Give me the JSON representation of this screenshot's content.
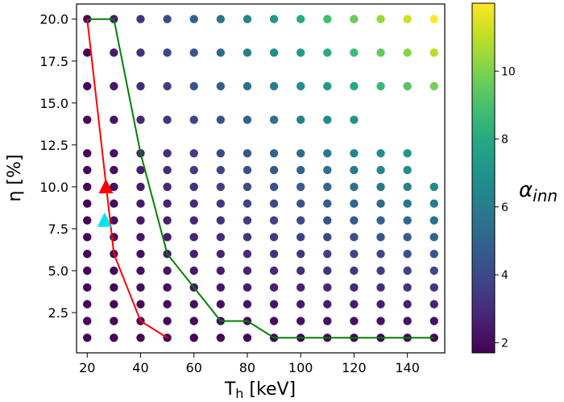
{
  "chart_data": {
    "type": "scatter",
    "xlabel": "T",
    "xlabel_sub": "h",
    "xlabel_unit": " [keV]",
    "ylabel": "η [%]",
    "colorbar_label": "α",
    "colorbar_label_sub": "inn",
    "xlim": [
      16,
      154
    ],
    "ylim": [
      0.1,
      20.9
    ],
    "xticks": [
      20,
      40,
      60,
      80,
      100,
      120,
      140
    ],
    "xtick_labels": [
      "20",
      "40",
      "60",
      "80",
      "100",
      "120",
      "140"
    ],
    "yticks": [
      2.5,
      5.0,
      7.5,
      10.0,
      12.5,
      15.0,
      17.5,
      20.0
    ],
    "ytick_labels": [
      "2.5",
      "5.0",
      "7.5",
      "10.0",
      "12.5",
      "15.0",
      "17.5",
      "20.0"
    ],
    "colorbar_range": [
      1.7,
      12.0
    ],
    "colorbar_ticks": [
      2,
      4,
      6,
      8,
      10
    ],
    "colorbar_tick_labels": [
      "2",
      "4",
      "6",
      "8",
      "10"
    ],
    "colormap": "viridis",
    "grid": false,
    "grid_x": [
      20,
      30,
      40,
      50,
      60,
      70,
      80,
      90,
      100,
      110,
      120,
      130,
      140,
      150
    ],
    "grid_y": [
      1,
      2,
      3,
      4,
      5,
      6,
      7,
      8,
      9,
      10,
      11,
      12,
      14,
      16,
      18,
      20
    ],
    "visible_points_per_row": {
      "1": 14,
      "2": 14,
      "3": 14,
      "4": 14,
      "5": 14,
      "6": 14,
      "7": 14,
      "8": 14,
      "9": 14,
      "10": 14,
      "11": 13,
      "12": 13,
      "14": 11,
      "16": 14,
      "18": 14,
      "20": 14
    },
    "series": [
      {
        "color": "#ff0000",
        "x": [
          20,
          30,
          40,
          50
        ],
        "y": [
          20,
          6,
          2,
          1
        ]
      },
      {
        "color": "#008000",
        "x": [
          20,
          30,
          40,
          50,
          60,
          70,
          80,
          90,
          150
        ],
        "y": [
          20,
          20,
          12,
          6,
          4,
          2,
          2,
          1,
          1
        ]
      }
    ],
    "red_line_points": [
      [
        20,
        20
      ],
      [
        30,
        6
      ],
      [
        40,
        2
      ],
      [
        50,
        1
      ]
    ],
    "green_line_points": [
      [
        20,
        20
      ],
      [
        30,
        20
      ],
      [
        40,
        12
      ],
      [
        50,
        6
      ],
      [
        60,
        4
      ],
      [
        70,
        2
      ],
      [
        80,
        2
      ],
      [
        90,
        1
      ],
      [
        150,
        1
      ]
    ],
    "markers": [
      {
        "shape": "triangle",
        "color": "#ff0000",
        "x": 27,
        "y": 10
      },
      {
        "shape": "triangle",
        "color": "#00e5ee",
        "x": 26.5,
        "y": 8
      }
    ],
    "colors": {
      "red_line": "#ff0000",
      "green_line": "#008000",
      "red_marker": "#ff0000",
      "cyan_marker": "#00e5ee"
    }
  }
}
